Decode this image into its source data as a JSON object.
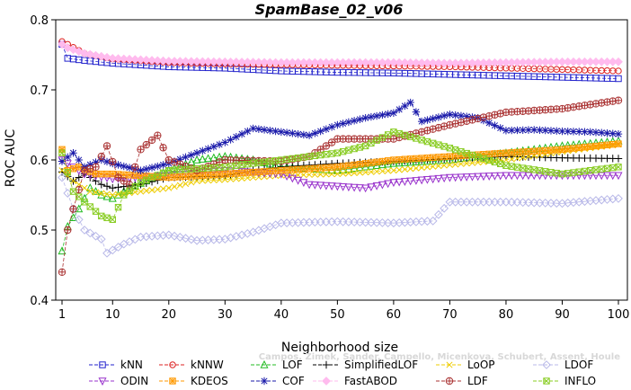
{
  "chart_data": {
    "type": "line",
    "title": "SpamBase_02_v06",
    "xlabel": "Neighborhood size",
    "ylabel": "ROC AUC",
    "xlim": [
      1,
      100
    ],
    "ylim": [
      0.4,
      0.8
    ],
    "xticks": [
      1,
      10,
      20,
      30,
      40,
      50,
      60,
      70,
      80,
      90,
      100
    ],
    "yticks": [
      0.4,
      0.5,
      0.6,
      0.7,
      0.8
    ],
    "xtick_labels": [
      "1",
      "10",
      "20",
      "30",
      "40",
      "50",
      "60",
      "70",
      "80",
      "90",
      "100"
    ],
    "ytick_labels": [
      "0.4",
      "0.5",
      "0.6",
      "0.7",
      "0.8"
    ],
    "grid": false,
    "legend_position": "bottom",
    "series": [
      {
        "name": "kNN",
        "color": "#2222cc",
        "marker": "square",
        "points": [
          [
            1,
            0.765
          ],
          [
            2,
            0.745
          ],
          [
            5,
            0.742
          ],
          [
            10,
            0.738
          ],
          [
            20,
            0.733
          ],
          [
            30,
            0.731
          ],
          [
            40,
            0.727
          ],
          [
            50,
            0.725
          ],
          [
            60,
            0.724
          ],
          [
            70,
            0.722
          ],
          [
            80,
            0.72
          ],
          [
            90,
            0.718
          ],
          [
            100,
            0.716
          ]
        ]
      },
      {
        "name": "kNNW",
        "color": "#dd2222",
        "marker": "circle",
        "points": [
          [
            1,
            0.769
          ],
          [
            2,
            0.765
          ],
          [
            5,
            0.752
          ],
          [
            10,
            0.744
          ],
          [
            20,
            0.739
          ],
          [
            30,
            0.737
          ],
          [
            40,
            0.736
          ],
          [
            50,
            0.735
          ],
          [
            60,
            0.734
          ],
          [
            70,
            0.733
          ],
          [
            80,
            0.731
          ],
          [
            90,
            0.729
          ],
          [
            100,
            0.727
          ]
        ]
      },
      {
        "name": "LOF",
        "color": "#22bb22",
        "marker": "triangle",
        "points": [
          [
            1,
            0.47
          ],
          [
            2,
            0.505
          ],
          [
            4,
            0.53
          ],
          [
            6,
            0.56
          ],
          [
            8,
            0.55
          ],
          [
            10,
            0.545
          ],
          [
            13,
            0.56
          ],
          [
            16,
            0.57
          ],
          [
            20,
            0.585
          ],
          [
            25,
            0.6
          ],
          [
            30,
            0.605
          ],
          [
            35,
            0.6
          ],
          [
            40,
            0.59
          ],
          [
            50,
            0.585
          ],
          [
            60,
            0.595
          ],
          [
            70,
            0.6
          ],
          [
            80,
            0.61
          ],
          [
            90,
            0.62
          ],
          [
            100,
            0.627
          ]
        ]
      },
      {
        "name": "SimplifiedLOF",
        "color": "#000000",
        "marker": "plus",
        "points": [
          [
            1,
            0.583
          ],
          [
            3,
            0.57
          ],
          [
            5,
            0.58
          ],
          [
            8,
            0.565
          ],
          [
            10,
            0.56
          ],
          [
            15,
            0.565
          ],
          [
            20,
            0.575
          ],
          [
            30,
            0.577
          ],
          [
            35,
            0.585
          ],
          [
            40,
            0.59
          ],
          [
            50,
            0.595
          ],
          [
            60,
            0.598
          ],
          [
            70,
            0.602
          ],
          [
            80,
            0.605
          ],
          [
            90,
            0.603
          ],
          [
            100,
            0.602
          ]
        ]
      },
      {
        "name": "LoOP",
        "color": "#eecc00",
        "marker": "x",
        "points": [
          [
            1,
            0.585
          ],
          [
            3,
            0.57
          ],
          [
            6,
            0.555
          ],
          [
            10,
            0.55
          ],
          [
            15,
            0.555
          ],
          [
            20,
            0.56
          ],
          [
            25,
            0.57
          ],
          [
            30,
            0.572
          ],
          [
            40,
            0.578
          ],
          [
            50,
            0.58
          ],
          [
            60,
            0.585
          ],
          [
            70,
            0.593
          ],
          [
            80,
            0.6
          ],
          [
            90,
            0.612
          ],
          [
            100,
            0.622
          ]
        ]
      },
      {
        "name": "LDOF",
        "color": "#b8b8e8",
        "marker": "diamond",
        "points": [
          [
            1,
            0.575
          ],
          [
            3,
            0.53
          ],
          [
            5,
            0.5
          ],
          [
            8,
            0.487
          ],
          [
            9,
            0.467
          ],
          [
            12,
            0.48
          ],
          [
            15,
            0.49
          ],
          [
            20,
            0.493
          ],
          [
            25,
            0.485
          ],
          [
            30,
            0.487
          ],
          [
            35,
            0.497
          ],
          [
            40,
            0.51
          ],
          [
            50,
            0.512
          ],
          [
            60,
            0.51
          ],
          [
            67,
            0.513
          ],
          [
            70,
            0.54
          ],
          [
            80,
            0.54
          ],
          [
            90,
            0.538
          ],
          [
            100,
            0.545
          ]
        ]
      },
      {
        "name": "ODIN",
        "color": "#9933cc",
        "marker": "triangle-down",
        "points": [
          [
            1,
            0.6
          ],
          [
            5,
            0.58
          ],
          [
            10,
            0.573
          ],
          [
            20,
            0.578
          ],
          [
            30,
            0.585
          ],
          [
            40,
            0.58
          ],
          [
            45,
            0.565
          ],
          [
            55,
            0.56
          ],
          [
            60,
            0.568
          ],
          [
            70,
            0.575
          ],
          [
            80,
            0.578
          ],
          [
            90,
            0.578
          ],
          [
            100,
            0.578
          ]
        ]
      },
      {
        "name": "KDEOS",
        "color": "#ff9900",
        "marker": "asterisk-square",
        "points": [
          [
            1,
            0.615
          ],
          [
            2,
            0.585
          ],
          [
            4,
            0.59
          ],
          [
            7,
            0.58
          ],
          [
            10,
            0.58
          ],
          [
            20,
            0.575
          ],
          [
            30,
            0.58
          ],
          [
            40,
            0.585
          ],
          [
            50,
            0.59
          ],
          [
            60,
            0.6
          ],
          [
            70,
            0.605
          ],
          [
            80,
            0.61
          ],
          [
            90,
            0.615
          ],
          [
            100,
            0.623
          ]
        ]
      },
      {
        "name": "COF",
        "color": "#1a1aaa",
        "marker": "asterisk",
        "points": [
          [
            1,
            0.598
          ],
          [
            3,
            0.61
          ],
          [
            5,
            0.59
          ],
          [
            8,
            0.6
          ],
          [
            10,
            0.595
          ],
          [
            15,
            0.585
          ],
          [
            20,
            0.595
          ],
          [
            25,
            0.61
          ],
          [
            30,
            0.625
          ],
          [
            35,
            0.645
          ],
          [
            40,
            0.64
          ],
          [
            45,
            0.635
          ],
          [
            50,
            0.65
          ],
          [
            55,
            0.66
          ],
          [
            60,
            0.667
          ],
          [
            63,
            0.682
          ],
          [
            65,
            0.655
          ],
          [
            70,
            0.665
          ],
          [
            75,
            0.66
          ],
          [
            80,
            0.642
          ],
          [
            85,
            0.643
          ],
          [
            90,
            0.641
          ],
          [
            95,
            0.64
          ],
          [
            100,
            0.637
          ]
        ]
      },
      {
        "name": "FastABOD",
        "color": "#ffbbee",
        "marker": "diamond-filled",
        "points": [
          [
            1,
            0.765
          ],
          [
            2,
            0.76
          ],
          [
            5,
            0.752
          ],
          [
            10,
            0.745
          ],
          [
            20,
            0.741
          ],
          [
            30,
            0.74
          ],
          [
            40,
            0.739
          ],
          [
            50,
            0.739
          ],
          [
            60,
            0.739
          ],
          [
            70,
            0.738
          ],
          [
            80,
            0.739
          ],
          [
            90,
            0.74
          ],
          [
            100,
            0.74
          ]
        ]
      },
      {
        "name": "LDF",
        "color": "#aa3333",
        "marker": "circle-plus",
        "points": [
          [
            1,
            0.44
          ],
          [
            2,
            0.5
          ],
          [
            3,
            0.53
          ],
          [
            5,
            0.585
          ],
          [
            7,
            0.59
          ],
          [
            9,
            0.62
          ],
          [
            11,
            0.575
          ],
          [
            13,
            0.565
          ],
          [
            15,
            0.615
          ],
          [
            18,
            0.635
          ],
          [
            20,
            0.6
          ],
          [
            25,
            0.585
          ],
          [
            30,
            0.6
          ],
          [
            40,
            0.598
          ],
          [
            45,
            0.605
          ],
          [
            50,
            0.63
          ],
          [
            60,
            0.63
          ],
          [
            70,
            0.65
          ],
          [
            80,
            0.668
          ],
          [
            90,
            0.673
          ],
          [
            100,
            0.685
          ]
        ]
      },
      {
        "name": "INFLO",
        "color": "#88cc22",
        "marker": "x-square",
        "points": [
          [
            1,
            0.61
          ],
          [
            3,
            0.555
          ],
          [
            5,
            0.54
          ],
          [
            8,
            0.52
          ],
          [
            10,
            0.515
          ],
          [
            12,
            0.55
          ],
          [
            15,
            0.568
          ],
          [
            20,
            0.585
          ],
          [
            30,
            0.59
          ],
          [
            40,
            0.6
          ],
          [
            50,
            0.61
          ],
          [
            55,
            0.62
          ],
          [
            60,
            0.64
          ],
          [
            70,
            0.617
          ],
          [
            80,
            0.592
          ],
          [
            90,
            0.58
          ],
          [
            100,
            0.59
          ]
        ]
      }
    ],
    "annotation": "Campos, Zimek, Sander, Campello, Micenkova, Schubert, Assent, Houle"
  }
}
